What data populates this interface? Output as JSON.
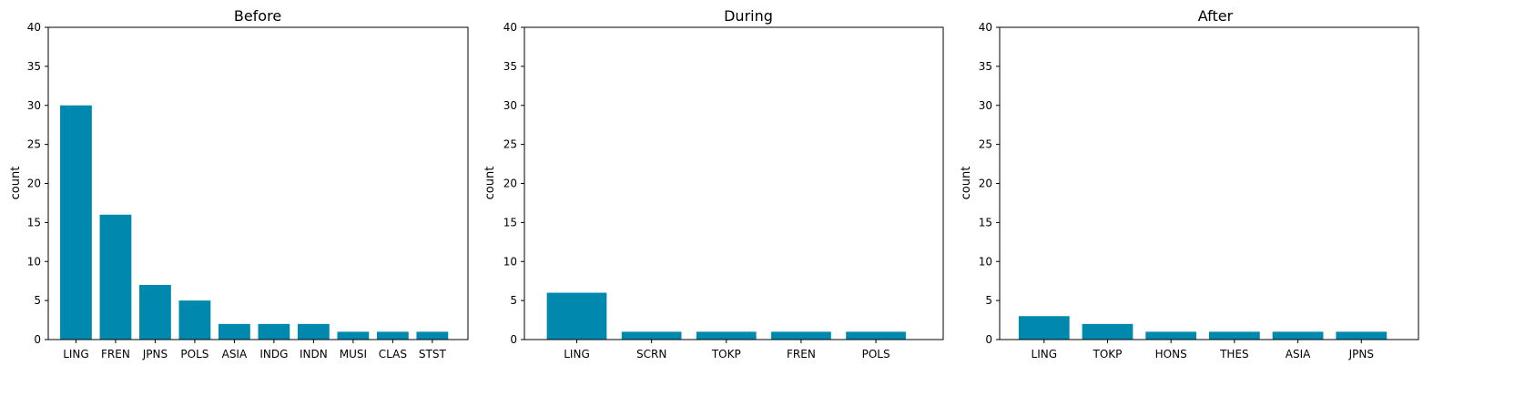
{
  "chart_data": [
    {
      "type": "bar",
      "title": "Before",
      "xlabel": "",
      "ylabel": "count",
      "ylim": [
        0,
        40
      ],
      "yticks": [
        0,
        5,
        10,
        15,
        20,
        25,
        30,
        35,
        40
      ],
      "categories": [
        "LING",
        "FREN",
        "JPNS",
        "POLS",
        "ASIA",
        "INDG",
        "INDN",
        "MUSI",
        "CLAS",
        "STST"
      ],
      "values": [
        30,
        16,
        7,
        5,
        2,
        2,
        2,
        1,
        1,
        1
      ],
      "color": "#0088ae",
      "grid": false
    },
    {
      "type": "bar",
      "title": "During",
      "xlabel": "",
      "ylabel": "count",
      "ylim": [
        0,
        40
      ],
      "yticks": [
        0,
        5,
        10,
        15,
        20,
        25,
        30,
        35,
        40
      ],
      "categories": [
        "LING",
        "SCRN",
        "TOKP",
        "FREN",
        "POLS"
      ],
      "values": [
        6,
        1,
        1,
        1,
        1
      ],
      "color": "#0088ae",
      "grid": false
    },
    {
      "type": "bar",
      "title": "After",
      "xlabel": "",
      "ylabel": "count",
      "ylim": [
        0,
        40
      ],
      "yticks": [
        0,
        5,
        10,
        15,
        20,
        25,
        30,
        35,
        40
      ],
      "categories": [
        "LING",
        "TOKP",
        "HONS",
        "THES",
        "ASIA",
        "JPNS"
      ],
      "values": [
        3,
        2,
        1,
        1,
        1,
        1
      ],
      "color": "#0088ae",
      "grid": false
    }
  ]
}
